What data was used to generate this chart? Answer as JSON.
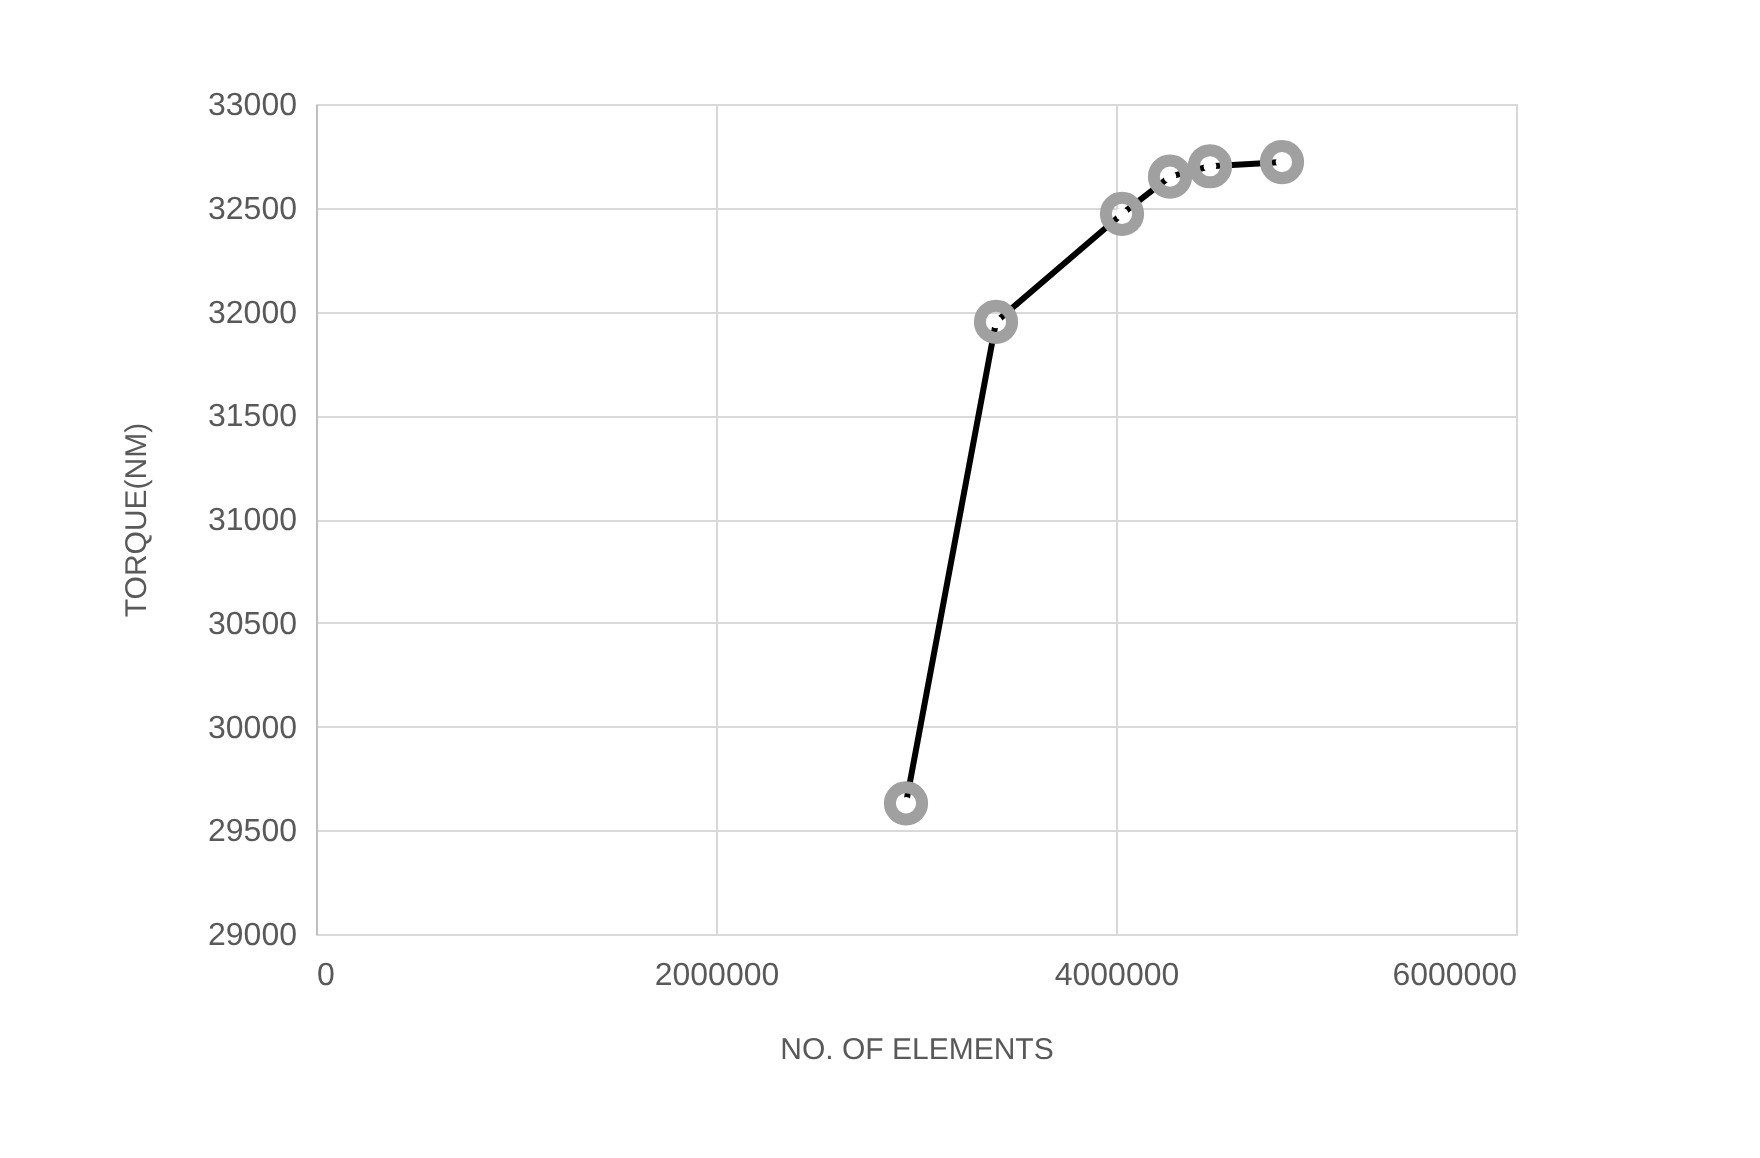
{
  "chart_data": {
    "type": "line",
    "xlabel": "NO. OF ELEMENTS",
    "ylabel": "TORQUE(NM)",
    "x": [
      2950000,
      3400000,
      4030000,
      4270000,
      4470000,
      4830000
    ],
    "series": [
      {
        "color": "#000000",
        "marker": "circle",
        "values": [
          29630,
          31950,
          32470,
          32650,
          32700,
          32720
        ]
      }
    ],
    "xlim": [
      0,
      6000000
    ],
    "xticks": [
      0,
      2000000,
      4000000,
      6000000
    ],
    "ylim": [
      29000,
      33000
    ],
    "yticks": [
      29000,
      29500,
      30000,
      30500,
      31000,
      31500,
      32000,
      32500,
      33000
    ],
    "grid": true,
    "legend": false
  }
}
